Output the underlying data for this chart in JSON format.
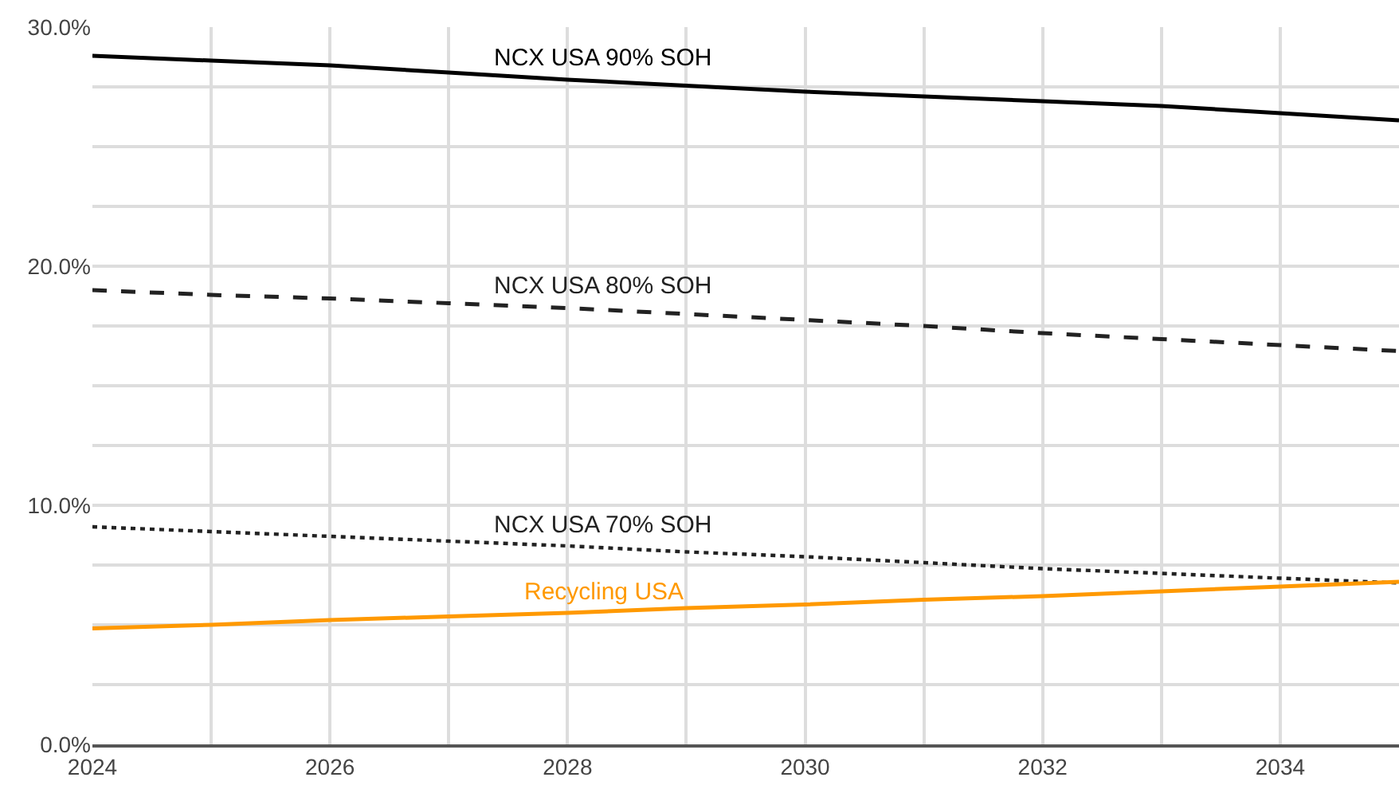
{
  "chart_data": {
    "type": "line",
    "x": [
      2024,
      2025,
      2026,
      2027,
      2028,
      2029,
      2030,
      2031,
      2032,
      2033,
      2034,
      2035
    ],
    "series": [
      {
        "name": "NCX USA 90% SOH",
        "color": "#000000",
        "line_style": "solid",
        "values": [
          28.8,
          28.6,
          28.4,
          28.1,
          27.8,
          27.55,
          27.3,
          27.1,
          26.9,
          26.7,
          26.4,
          26.1
        ]
      },
      {
        "name": "NCX USA 80% SOH",
        "color": "#222222",
        "line_style": "dashed",
        "values": [
          19.0,
          18.8,
          18.65,
          18.45,
          18.25,
          18.0,
          17.75,
          17.5,
          17.2,
          16.95,
          16.7,
          16.45
        ]
      },
      {
        "name": "NCX USA 70% SOH",
        "color": "#222222",
        "line_style": "dotted",
        "values": [
          9.1,
          8.9,
          8.7,
          8.5,
          8.3,
          8.05,
          7.85,
          7.6,
          7.35,
          7.15,
          6.95,
          6.75
        ]
      },
      {
        "name": "Recycling USA",
        "color": "#ff9900",
        "line_style": "solid",
        "values": [
          4.85,
          5.0,
          5.2,
          5.35,
          5.5,
          5.7,
          5.85,
          6.05,
          6.2,
          6.4,
          6.6,
          6.8
        ]
      }
    ],
    "xlim": [
      2024,
      2035
    ],
    "xticks": [
      2024,
      {
        "value": 2025,
        "label": null
      },
      2026,
      {
        "value": 2027,
        "label": null
      },
      2028,
      {
        "value": 2029,
        "label": null
      },
      2030,
      {
        "value": 2031,
        "label": null
      },
      2032,
      {
        "value": 2033,
        "label": null
      },
      2034
    ],
    "ylim": [
      0,
      30
    ],
    "yticks": [
      {
        "value": 0,
        "label": "0.0%"
      },
      {
        "value": 2.5,
        "label": null
      },
      {
        "value": 5,
        "label": null
      },
      {
        "value": 7.5,
        "label": null
      },
      {
        "value": 10,
        "label": "10.0%"
      },
      {
        "value": 12.5,
        "label": null
      },
      {
        "value": 15,
        "label": null
      },
      {
        "value": 17.5,
        "label": null
      },
      {
        "value": 20,
        "label": "20.0%"
      },
      {
        "value": 22.5,
        "label": null
      },
      {
        "value": 25,
        "label": null
      },
      {
        "value": 27.5,
        "label": null
      },
      {
        "value": 30,
        "label": "30.0%"
      }
    ],
    "grid": true,
    "legend": false,
    "marker": "none"
  }
}
